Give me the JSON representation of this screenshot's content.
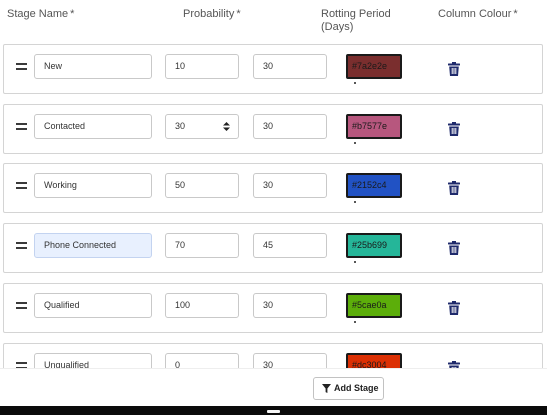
{
  "header": {
    "stage_name": "Stage Name",
    "probability": "Probability",
    "rotting_period_line1": "Rotting Period",
    "rotting_period_line2": "(Days)",
    "column_colour": "Column Colour",
    "required_marker": "*"
  },
  "stages": [
    {
      "name": "New",
      "probability": "10",
      "rotting": "30",
      "colour_hex": "#7a2e2e",
      "colour_label": "#7a2e2e",
      "text_color": "#1a1a1a"
    },
    {
      "name": "Contacted",
      "probability": "30",
      "rotting": "30",
      "colour_hex": "#b7577e",
      "colour_label": "#b7577e",
      "text_color": "#1a1a1a"
    },
    {
      "name": "Working",
      "probability": "50",
      "rotting": "30",
      "colour_hex": "#2152c4",
      "colour_label": "#2152c4",
      "text_color": "#1a1a1a"
    },
    {
      "name": "Phone Connected",
      "probability": "70",
      "rotting": "45",
      "colour_hex": "#25b699",
      "colour_label": "#25b699",
      "text_color": "#1a1a1a"
    },
    {
      "name": "Qualified",
      "probability": "100",
      "rotting": "30",
      "colour_hex": "#5cae0a",
      "colour_label": "#5cae0a",
      "text_color": "#1a1a1a"
    },
    {
      "name": "Unqualified",
      "probability": "0",
      "rotting": "30",
      "colour_hex": "#dc3004",
      "colour_label": "#dc3004",
      "text_color": "#1a1a1a"
    }
  ],
  "icons": {
    "drag": "drag-handle-icon",
    "delete": "trash-icon",
    "spinner": "number-spinner-icon",
    "filter": "filter-icon"
  },
  "footer": {
    "add_stage_label": "Add Stage"
  },
  "colors": {
    "trash": "#1f2a6b",
    "required": "#e53935"
  }
}
